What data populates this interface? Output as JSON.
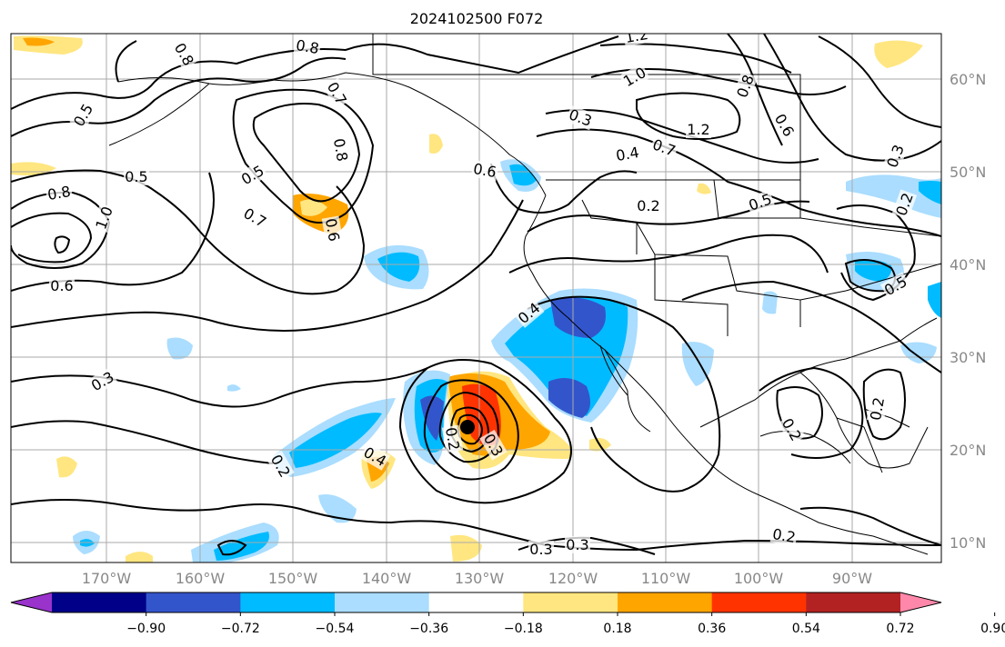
{
  "title": "2024102500 F072",
  "lat_labels": [
    "60°N",
    "50°N",
    "40°N",
    "30°N",
    "20°N",
    "10°N"
  ],
  "lon_labels": [
    "170°W",
    "160°W",
    "150°W",
    "140°W",
    "130°W",
    "120°W",
    "110°W",
    "100°W",
    "90°W"
  ],
  "colorbar": {
    "colors": [
      "#9933cc",
      "#000088",
      "#3355cc",
      "#00bbff",
      "#aaddff",
      "#ffffff",
      "#ffe680",
      "#ffa500",
      "#ff3300",
      "#b22222",
      "#ff88aa"
    ],
    "tick_labels": [
      "−0.90",
      "−0.72",
      "−0.54",
      "−0.36",
      "−0.18",
      "0.18",
      "0.36",
      "0.54",
      "0.72",
      "0.90"
    ]
  },
  "contour_labels": [
    "0.8",
    "0.8",
    "0.5",
    "0.7",
    "0.8",
    "0.5",
    "0.6",
    "0.5",
    "0.8",
    "1.0",
    "0.7",
    "0.6",
    "1.2",
    "1.0",
    "0.3",
    "0.4",
    "0.7",
    "1.2",
    "0.6",
    "0.8",
    "0.2",
    "0.5",
    "0.3",
    "0.2",
    "0.5",
    "0.4",
    "0.6",
    "0.3",
    "0.2",
    "0.4",
    "0.2",
    "0.3",
    "0.2",
    "0.2",
    "0.3",
    "0.3",
    "0.2"
  ],
  "cyclone_center": "storm-center-marker"
}
